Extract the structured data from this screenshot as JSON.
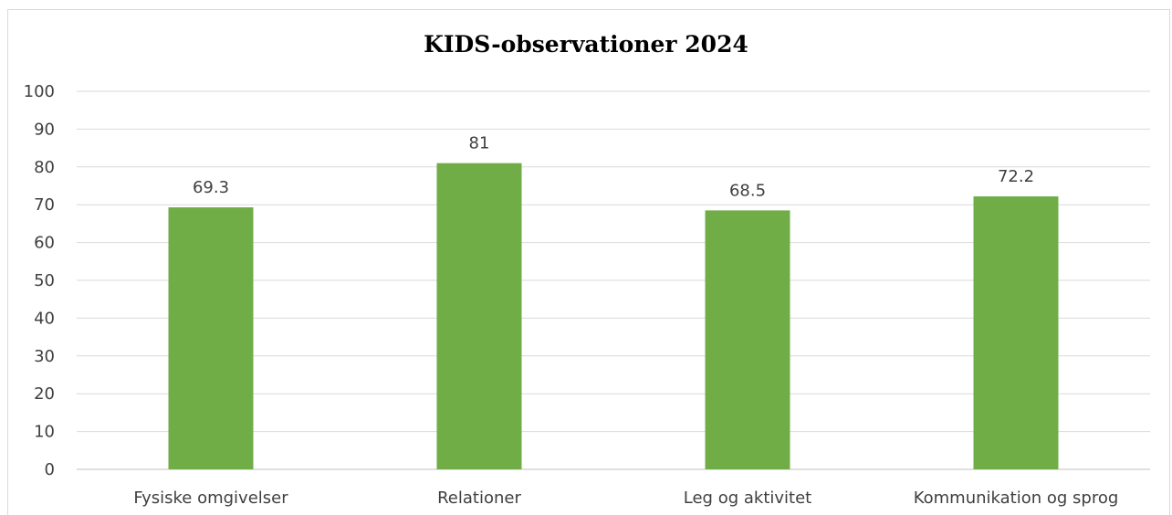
{
  "chart_data": {
    "type": "bar",
    "title": "KIDS-observationer 2024",
    "categories": [
      "Fysiske omgivelser",
      "Relationer",
      "Leg og aktivitet",
      "Kommunikation og sprog"
    ],
    "values": [
      69.3,
      81,
      68.5,
      72.2
    ],
    "data_labels": [
      "69.3",
      "81",
      "68.5",
      "72.2"
    ],
    "xlabel": "",
    "ylabel": "",
    "ylim": [
      0,
      100
    ],
    "yticks": [
      0,
      10,
      20,
      30,
      40,
      50,
      60,
      70,
      80,
      90,
      100
    ],
    "grid": true,
    "legend": "none",
    "bar_color": "#70ad47"
  }
}
